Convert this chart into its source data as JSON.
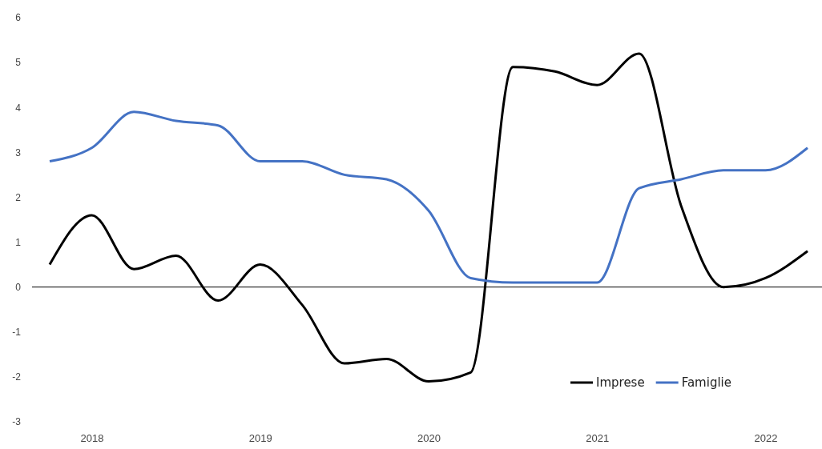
{
  "chart_data": {
    "type": "line",
    "categories": [
      null,
      "2018",
      null,
      null,
      null,
      "2019",
      null,
      null,
      null,
      "2020",
      null,
      null,
      null,
      "2021",
      null,
      null,
      null,
      "2022",
      null
    ],
    "series": [
      {
        "name": "Imprese",
        "color": "#000000",
        "values": [
          0.5,
          1.6,
          0.4,
          0.7,
          -0.3,
          0.5,
          -0.4,
          -1.7,
          -1.6,
          -2.1,
          -1.9,
          4.9,
          4.8,
          4.5,
          5.2,
          1.8,
          0.0,
          0.2,
          0.8
        ]
      },
      {
        "name": "Famiglie",
        "color": "#4472c4",
        "values": [
          2.8,
          3.1,
          3.9,
          3.7,
          3.6,
          2.8,
          2.8,
          2.5,
          2.4,
          1.7,
          0.2,
          0.1,
          0.1,
          0.1,
          2.2,
          2.4,
          2.6,
          2.6,
          3.1
        ]
      }
    ],
    "ylim": [
      -3,
      6
    ],
    "yticks": [
      -3,
      -2,
      -1,
      0,
      1,
      2,
      3,
      4,
      5,
      6
    ],
    "legend": "bottom right",
    "marker": "none",
    "line_style": "solid"
  }
}
